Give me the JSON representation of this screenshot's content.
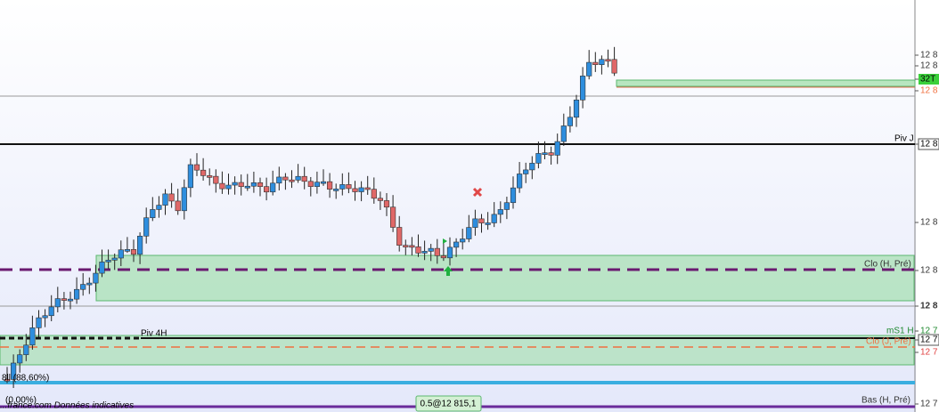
{
  "levels": {
    "piv_j": "Piv J",
    "clo_h_pre": "Clo (H, Pré)",
    "piv_4h": "Piv 4H",
    "ms1_h": "mS1 H",
    "clo_j_pre": "Clo (J, Pré)",
    "bas_h_pre": "Bas (H, Pré)"
  },
  "annotations": {
    "fib_label": "8ll (88,60%)",
    "fib_zero": "(0,00%)",
    "source": "...france.com  Données indicatives",
    "order_box": "0.5@12 815,1"
  },
  "price_axis": {
    "labels": [
      "12 8",
      "12 8",
      "32T",
      "12 8",
      "12 8",
      "12 8",
      "12 8",
      "12 8",
      "12 7",
      "12 7",
      "12 7",
      "12 7"
    ]
  }
}
